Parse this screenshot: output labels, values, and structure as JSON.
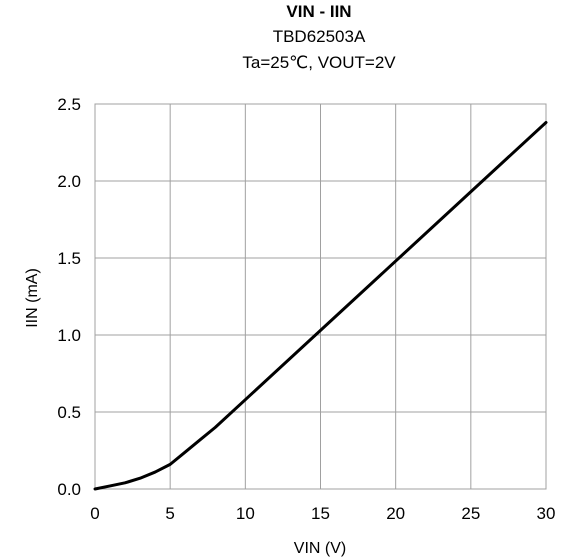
{
  "chart_data": {
    "type": "line",
    "title": "VIN  - IIN",
    "subtitle_lines": [
      "TBD62503A",
      "Ta=25℃, VOUT=2V"
    ],
    "xlabel": "VIN (V)",
    "ylabel": "IIN (mA)",
    "xlim": [
      0,
      30
    ],
    "ylim": [
      0,
      2.5
    ],
    "xticks": [
      0,
      5,
      10,
      15,
      20,
      25,
      30
    ],
    "yticks": [
      0,
      0.5,
      1.0,
      1.5,
      2.0,
      2.5
    ],
    "xtick_labels": [
      "0",
      "5",
      "10",
      "15",
      "20",
      "25",
      "30"
    ],
    "ytick_labels": [
      "0.0",
      "0.5",
      "1.0",
      "1.5",
      "2.0",
      "2.5"
    ],
    "grid": true,
    "line_color": "#000000",
    "grid_color": "#a0a0a0",
    "series": [
      {
        "x": [
          0,
          1,
          2,
          3,
          4,
          5,
          6,
          7,
          8,
          10,
          15,
          20,
          25,
          30
        ],
        "values": [
          0.0,
          0.02,
          0.04,
          0.07,
          0.11,
          0.16,
          0.24,
          0.32,
          0.4,
          0.58,
          1.03,
          1.48,
          1.93,
          2.38
        ]
      }
    ]
  }
}
